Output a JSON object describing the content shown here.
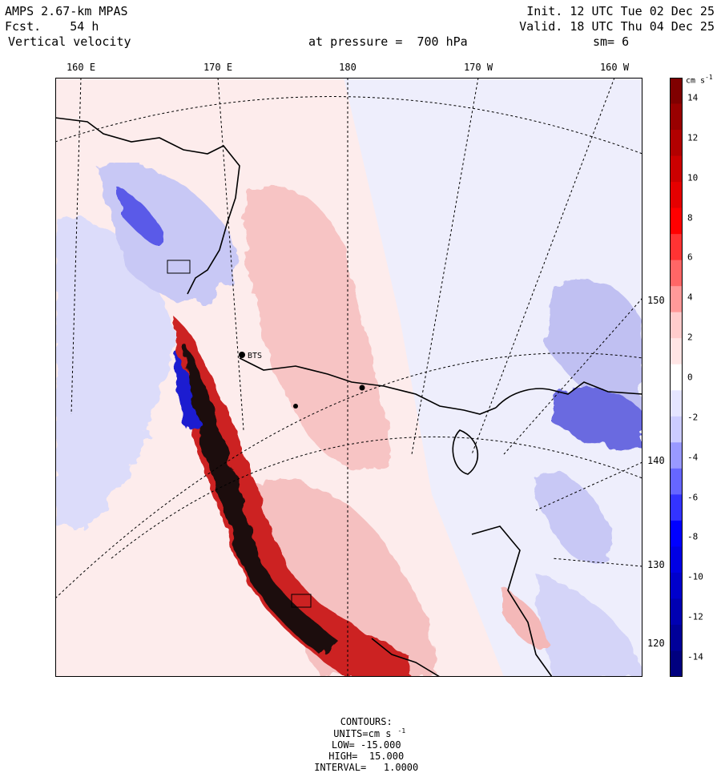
{
  "header": {
    "model": "AMPS 2.67-km MPAS",
    "forecast_label": "Fcst.",
    "forecast_value": "54 h",
    "variable": "Vertical velocity",
    "init": "Init. 12 UTC Tue 02 Dec 25",
    "valid": "Valid. 18 UTC Thu 04 Dec 25",
    "level": "at pressure =  700 hPa",
    "smoothing": "sm= 6"
  },
  "map": {
    "top_lon_labels": [
      "160 E",
      "170 E",
      "180",
      "170 W",
      "160 W"
    ],
    "right_lon_labels": [
      "150 W",
      "140 W",
      "130 W",
      "120 W"
    ],
    "station_labels": [
      "BTS"
    ]
  },
  "colorbar": {
    "units_text": "cm s",
    "units_exp": "-1",
    "labels": [
      "14",
      "12",
      "10",
      "8",
      "6",
      "4",
      "2",
      "0",
      "-2",
      "-4",
      "-6",
      "-8",
      "-10",
      "-12",
      "-14"
    ],
    "colors": [
      "#7f0000",
      "#990000",
      "#b20000",
      "#cc0000",
      "#e50000",
      "#ff0000",
      "#ff3333",
      "#ff6666",
      "#ff9999",
      "#ffcccc",
      "#ffe5e5",
      "#ffffff",
      "#e5e5ff",
      "#ccccff",
      "#9999ff",
      "#6666ff",
      "#3333ff",
      "#0000ff",
      "#0000e5",
      "#0000cc",
      "#0000b2",
      "#000099",
      "#00007f"
    ]
  },
  "footer": {
    "contours": "CONTOURS:",
    "units": "UNITS=cm s",
    "units_exp": "-1",
    "low": "LOW= -15.000",
    "high": "HIGH=  15.000",
    "interval": "INTERVAL=   1.0000"
  }
}
